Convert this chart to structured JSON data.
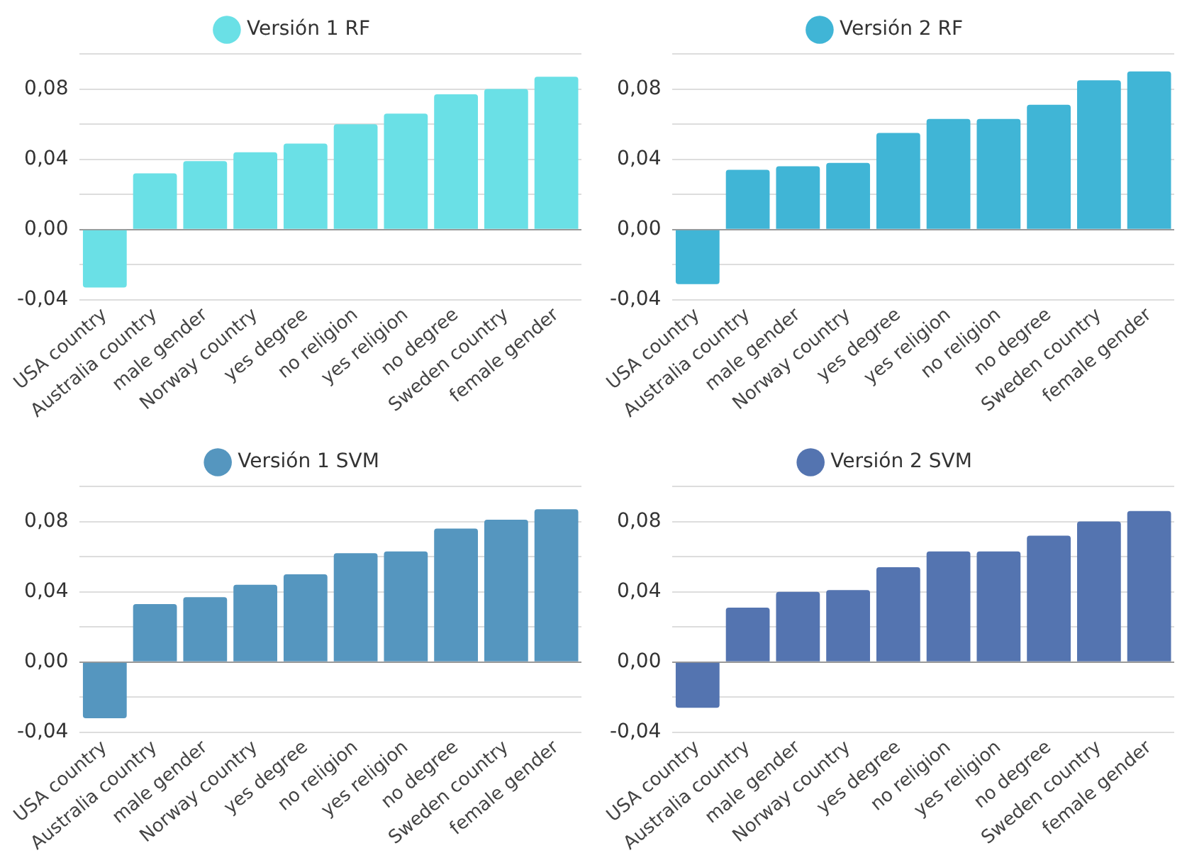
{
  "chart_data": [
    {
      "type": "bar",
      "categories": [
        "USA country",
        "Australia country",
        "male gender",
        "Norway country",
        "yes degree",
        "no religion",
        "yes religion",
        "no degree",
        "Sweden country",
        "female gender"
      ],
      "series": [
        {
          "name": "Versión 1 RF",
          "color": "#6ae0e6",
          "values": [
            -0.033,
            0.032,
            0.039,
            0.044,
            0.049,
            0.06,
            0.066,
            0.077,
            0.08,
            0.087
          ]
        }
      ],
      "ylim": [
        -0.04,
        0.1
      ],
      "yticks": [
        {
          "value": -0.04,
          "label": "-0,04"
        },
        {
          "value": -0.02,
          "label": null
        },
        {
          "value": 0,
          "label": "0,00"
        },
        {
          "value": 0.02,
          "label": null
        },
        {
          "value": 0.04,
          "label": "0,04"
        },
        {
          "value": 0.06,
          "label": null
        },
        {
          "value": 0.08,
          "label": "0,08"
        },
        {
          "value": 0.1,
          "label": null
        }
      ],
      "grid": "y",
      "legend": "top"
    },
    {
      "type": "bar",
      "categories": [
        "USA country",
        "Australia country",
        "male gender",
        "Norway country",
        "yes degree",
        "yes religion",
        "no religion",
        "no degree",
        "Sweden country",
        "female gender"
      ],
      "series": [
        {
          "name": "Versión 2 RF",
          "color": "#40b5d6",
          "values": [
            -0.031,
            0.034,
            0.036,
            0.038,
            0.055,
            0.063,
            0.063,
            0.071,
            0.085,
            0.09
          ]
        }
      ],
      "ylim": [
        -0.04,
        0.1
      ],
      "yticks": [
        {
          "value": -0.04,
          "label": "-0,04"
        },
        {
          "value": -0.02,
          "label": null
        },
        {
          "value": 0,
          "label": "0,00"
        },
        {
          "value": 0.02,
          "label": null
        },
        {
          "value": 0.04,
          "label": "0,04"
        },
        {
          "value": 0.06,
          "label": null
        },
        {
          "value": 0.08,
          "label": "0,08"
        },
        {
          "value": 0.1,
          "label": null
        }
      ],
      "grid": "y",
      "legend": "top"
    },
    {
      "type": "bar",
      "categories": [
        "USA country",
        "Australia country",
        "male gender",
        "Norway country",
        "yes degree",
        "no religion",
        "yes religion",
        "no degree",
        "Sweden country",
        "female gender"
      ],
      "series": [
        {
          "name": "Versión 1 SVM",
          "color": "#5596bf",
          "values": [
            -0.032,
            0.033,
            0.037,
            0.044,
            0.05,
            0.062,
            0.063,
            0.076,
            0.081,
            0.087
          ]
        }
      ],
      "ylim": [
        -0.04,
        0.1
      ],
      "yticks": [
        {
          "value": -0.04,
          "label": "-0,04"
        },
        {
          "value": -0.02,
          "label": null
        },
        {
          "value": 0,
          "label": "0,00"
        },
        {
          "value": 0.02,
          "label": null
        },
        {
          "value": 0.04,
          "label": "0,04"
        },
        {
          "value": 0.06,
          "label": null
        },
        {
          "value": 0.08,
          "label": "0,08"
        },
        {
          "value": 0.1,
          "label": null
        }
      ],
      "grid": "y",
      "legend": "top"
    },
    {
      "type": "bar",
      "categories": [
        "USA country",
        "Australia country",
        "male gender",
        "Norway country",
        "yes degree",
        "no religion",
        "yes religion",
        "no degree",
        "Sweden country",
        "female gender"
      ],
      "series": [
        {
          "name": "Versión 2 SVM",
          "color": "#5474b0",
          "values": [
            -0.026,
            0.031,
            0.04,
            0.041,
            0.054,
            0.063,
            0.063,
            0.072,
            0.08,
            0.086
          ]
        }
      ],
      "ylim": [
        -0.04,
        0.1
      ],
      "yticks": [
        {
          "value": -0.04,
          "label": "-0,04"
        },
        {
          "value": -0.02,
          "label": null
        },
        {
          "value": 0,
          "label": "0,00"
        },
        {
          "value": 0.02,
          "label": null
        },
        {
          "value": 0.04,
          "label": "0,04"
        },
        {
          "value": 0.06,
          "label": null
        },
        {
          "value": 0.08,
          "label": "0,08"
        },
        {
          "value": 0.1,
          "label": null
        }
      ],
      "grid": "y",
      "legend": "top"
    }
  ]
}
